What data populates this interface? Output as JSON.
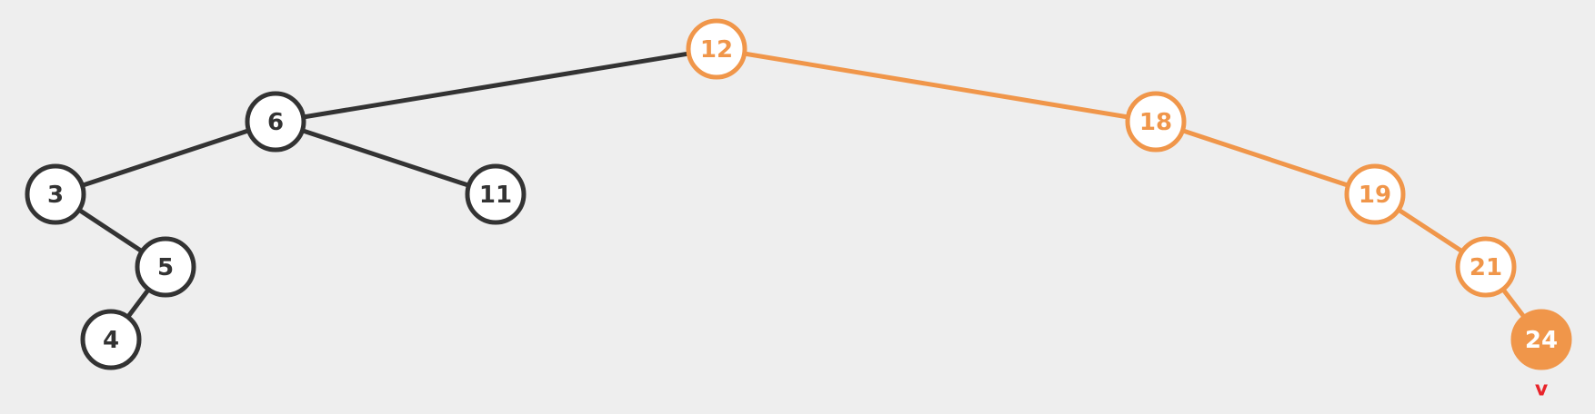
{
  "colors": {
    "background": "#eeeeee",
    "default_stroke": "#333333",
    "default_fill": "#ffffff",
    "highlight": "#f0964a",
    "current_fill": "#f0964a",
    "current_text": "#ffffff",
    "marker": "#e8242a"
  },
  "nodes": [
    {
      "id": "n12",
      "label": "12",
      "state": "path"
    },
    {
      "id": "n6",
      "label": "6",
      "state": "default"
    },
    {
      "id": "n18",
      "label": "18",
      "state": "path"
    },
    {
      "id": "n3",
      "label": "3",
      "state": "default"
    },
    {
      "id": "n11",
      "label": "11",
      "state": "default"
    },
    {
      "id": "n19",
      "label": "19",
      "state": "path"
    },
    {
      "id": "n5",
      "label": "5",
      "state": "default"
    },
    {
      "id": "n21",
      "label": "21",
      "state": "path"
    },
    {
      "id": "n4",
      "label": "4",
      "state": "default"
    },
    {
      "id": "n24",
      "label": "24",
      "state": "current"
    }
  ],
  "edges": [
    {
      "from": "n12",
      "to": "n6",
      "state": "default"
    },
    {
      "from": "n12",
      "to": "n18",
      "state": "path"
    },
    {
      "from": "n6",
      "to": "n3",
      "state": "default"
    },
    {
      "from": "n6",
      "to": "n11",
      "state": "default"
    },
    {
      "from": "n3",
      "to": "n5",
      "state": "default"
    },
    {
      "from": "n5",
      "to": "n4",
      "state": "default"
    },
    {
      "from": "n18",
      "to": "n19",
      "state": "path"
    },
    {
      "from": "n19",
      "to": "n21",
      "state": "path"
    },
    {
      "from": "n21",
      "to": "n24",
      "state": "path"
    }
  ],
  "marker": {
    "label": "v",
    "node": "n24"
  }
}
